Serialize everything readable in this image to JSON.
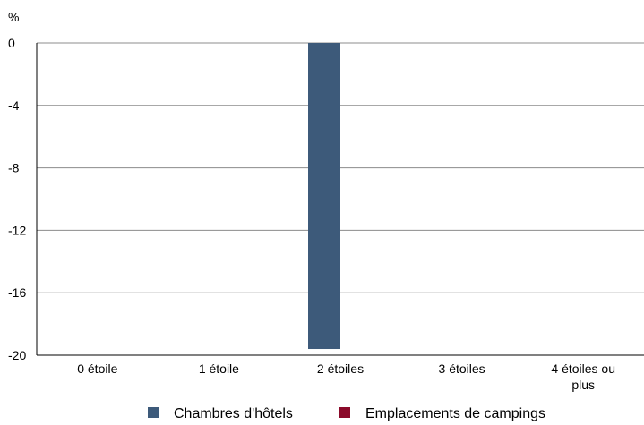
{
  "chart_data": {
    "type": "bar",
    "unit_label": "%",
    "categories": [
      "0 étoile",
      "1 étoile",
      "2 étoiles",
      "3 étoiles",
      "4 étoiles ou plus"
    ],
    "category_lines": [
      [
        "0 étoile"
      ],
      [
        "1 étoile"
      ],
      [
        "2 étoiles"
      ],
      [
        "3 étoiles"
      ],
      [
        "4 étoiles ou",
        "plus"
      ]
    ],
    "series": [
      {
        "name": "Chambres d'hôtels",
        "color": "#3d5a7a",
        "values": [
          0,
          0,
          -19.6,
          0,
          0
        ]
      },
      {
        "name": "Emplacements de campings",
        "color": "#8b0a2a",
        "values": [
          0,
          0,
          0,
          0,
          0
        ]
      }
    ],
    "yticks": [
      0,
      -4,
      -8,
      -12,
      -16,
      -20
    ],
    "ylim": [
      -20,
      0
    ],
    "grid": true,
    "legend_position": "bottom"
  }
}
